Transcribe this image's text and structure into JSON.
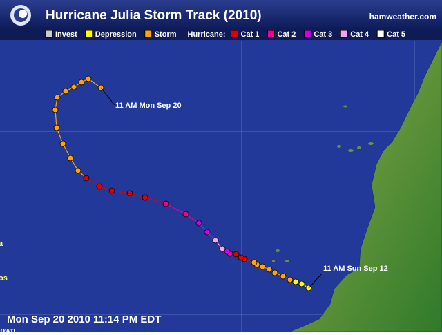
{
  "header": {
    "title": "Hurricane Julia Storm Track (2010)",
    "site": "hamweather.com"
  },
  "legend": {
    "items": [
      {
        "label": "Invest",
        "color": "#cccccc"
      },
      {
        "label": "Depression",
        "color": "#ffff00"
      },
      {
        "label": "Storm",
        "color": "#ffa500"
      }
    ],
    "hurricane_label": "Hurricane:",
    "hurricane_items": [
      {
        "label": "Cat 1",
        "color": "#dd0000"
      },
      {
        "label": "Cat 2",
        "color": "#ee0099"
      },
      {
        "label": "Cat 3",
        "color": "#cc00ee"
      },
      {
        "label": "Cat 4",
        "color": "#f2a6f2"
      },
      {
        "label": "Cat 5",
        "color": "#ffffff"
      }
    ]
  },
  "track": [
    "Depression",
    "Depression",
    "Depression",
    "Storm",
    "Storm",
    "Storm",
    "Storm",
    "Storm",
    "Storm",
    "Storm",
    "Cat 1",
    "Cat 1",
    "Cat 1",
    "Cat 2",
    "Cat 3",
    "Cat 4",
    "Cat 4",
    "Cat 3",
    "Cat 3",
    "Cat 2",
    "Cat 2",
    "Cat 1",
    "Cat 1",
    "Cat 1",
    "Cat 1",
    "Cat 1",
    "Storm",
    "Storm",
    "Storm",
    "Storm",
    "Storm",
    "Storm",
    "Storm",
    "Storm",
    "Storm",
    "Storm",
    "Storm"
  ],
  "annotations": {
    "start": "11 AM Sun Sep 12",
    "end": "11 AM Mon Sep 20"
  },
  "places": [
    "a",
    "os",
    "ntown"
  ],
  "timestamp": "Mon Sep 20 2010 11:14 PM EDT"
}
